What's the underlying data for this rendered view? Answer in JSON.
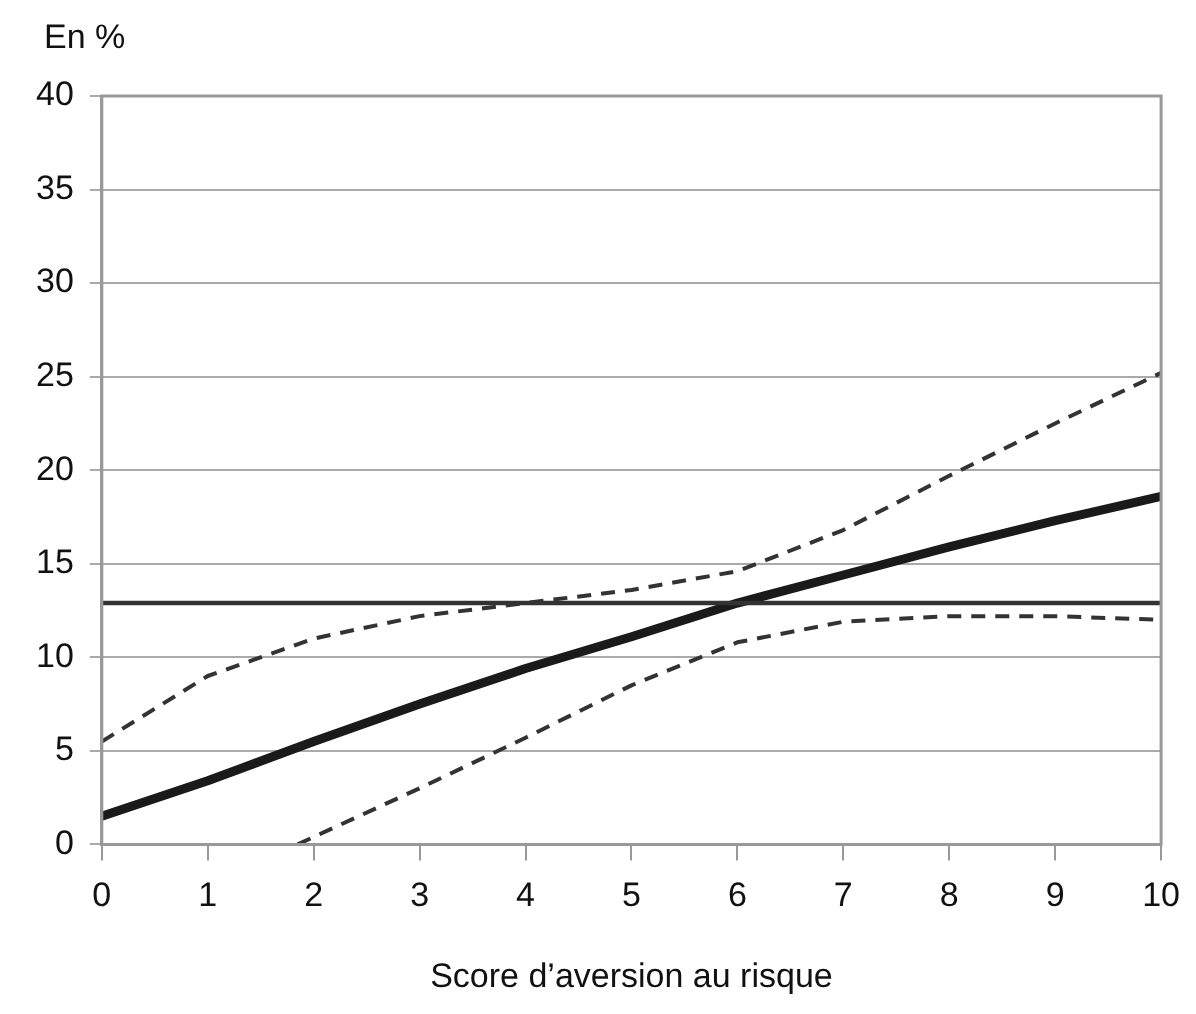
{
  "chart_data": {
    "type": "line",
    "ylabel": "En %",
    "xlabel": "Score d’aversion au risque",
    "xlim": [
      0,
      10
    ],
    "xticks": [
      0,
      1,
      2,
      3,
      4,
      5,
      6,
      7,
      8,
      9,
      10
    ],
    "ylim": [
      0,
      40
    ],
    "yticks": [
      0,
      5,
      10,
      15,
      20,
      25,
      30,
      35,
      40
    ],
    "grid": "y",
    "legend": false,
    "marker": "none",
    "series": [
      {
        "color": "#1a1a1a",
        "line_style": "solid",
        "x": [
          0,
          1,
          2,
          3,
          4,
          5,
          6,
          7,
          8,
          9,
          10
        ],
        "values": [
          1.5,
          3.4,
          5.5,
          7.5,
          9.4,
          11.1,
          12.9,
          14.4,
          15.9,
          17.3,
          18.6
        ]
      },
      {
        "color": "#333333",
        "line_style": "dashed",
        "x": [
          0,
          1,
          2,
          3,
          4,
          5,
          6,
          7,
          8,
          9,
          10
        ],
        "values": [
          5.5,
          9.0,
          11.0,
          12.2,
          12.9,
          13.6,
          14.6,
          16.8,
          19.7,
          22.5,
          25.2
        ]
      },
      {
        "color": "#333333",
        "line_style": "dashed",
        "x": [
          1.85,
          2,
          3,
          4,
          5,
          6,
          7,
          8,
          9,
          10
        ],
        "values": [
          0,
          0.4,
          3.0,
          5.7,
          8.5,
          10.8,
          11.9,
          12.2,
          12.2,
          12.0
        ]
      }
    ],
    "ref_lines": [
      {
        "axis": "y",
        "value": 12.9,
        "color": "#333333",
        "line_style": "solid"
      }
    ]
  }
}
